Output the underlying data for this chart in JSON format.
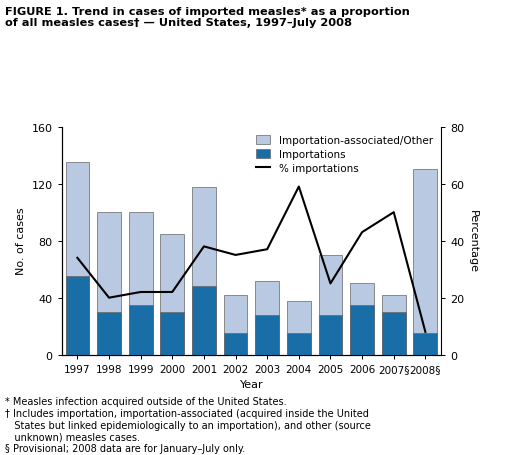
{
  "years": [
    "1997",
    "1998",
    "1999",
    "2000",
    "2001",
    "2002",
    "2003",
    "2004",
    "2005",
    "2006",
    "2007§",
    "2008§"
  ],
  "total_cases": [
    135,
    100,
    100,
    85,
    118,
    42,
    52,
    38,
    70,
    50,
    42,
    130
  ],
  "importations": [
    55,
    30,
    35,
    30,
    48,
    15,
    28,
    15,
    28,
    35,
    30,
    15
  ],
  "pct_importations": [
    34,
    20,
    22,
    22,
    38,
    35,
    37,
    59,
    25,
    43,
    50,
    8
  ],
  "bar_color_light": "#b8c9e1",
  "bar_color_dark": "#1a6ea8",
  "line_color": "#000000",
  "title": "FIGURE 1. Trend in cases of imported measles* as a proportion\nof all measles cases† — United States, 1997–July 2008",
  "ylabel_left": "No. of cases",
  "ylabel_right": "Percentage",
  "xlabel": "Year",
  "ylim_left": [
    0,
    160
  ],
  "ylim_right": [
    0,
    80
  ],
  "yticks_left": [
    0,
    40,
    80,
    120,
    160
  ],
  "yticks_right": [
    0,
    20,
    40,
    60,
    80
  ],
  "legend_labels": [
    "Importation-associated/Other",
    "Importations",
    "% importations"
  ],
  "fn1": "* Measles infection acquired outside of the United States.",
  "fn2": "† Includes importation, importation-associated (acquired inside the United",
  "fn3": "   States but linked epidemiologically to an importation), and other (source",
  "fn4": "   unknown) measles cases.",
  "fn5": "§ Provisional; 2008 data are for January–July only."
}
